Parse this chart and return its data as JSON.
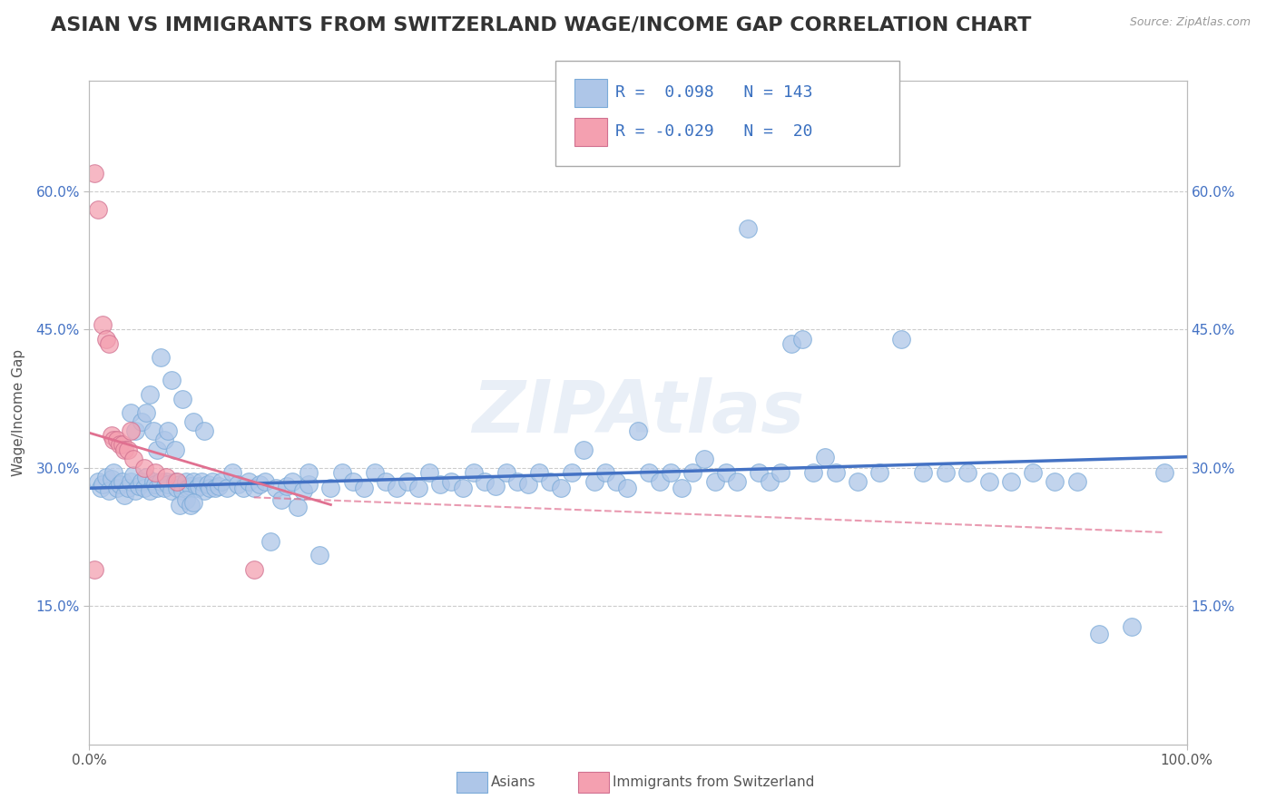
{
  "title": "ASIAN VS IMMIGRANTS FROM SWITZERLAND WAGE/INCOME GAP CORRELATION CHART",
  "source": "Source: ZipAtlas.com",
  "ylabel": "Wage/Income Gap",
  "xlim": [
    0.0,
    1.0
  ],
  "ylim": [
    0.0,
    0.72
  ],
  "yticks": [
    0.15,
    0.3,
    0.45,
    0.6
  ],
  "yticklabels": [
    "15.0%",
    "30.0%",
    "45.0%",
    "60.0%"
  ],
  "blue_dot_color": "#aec6e8",
  "pink_dot_color": "#f4a0b0",
  "blue_line_color": "#4472c4",
  "pink_line_color": "#e07090",
  "grid_color": "#cccccc",
  "background_color": "#ffffff",
  "watermark": "ZIPAtlas",
  "title_fontsize": 16,
  "axis_label_fontsize": 11,
  "tick_fontsize": 11,
  "blue_points_x": [
    0.008,
    0.01,
    0.012,
    0.015,
    0.018,
    0.02,
    0.022,
    0.025,
    0.028,
    0.03,
    0.032,
    0.035,
    0.038,
    0.04,
    0.042,
    0.045,
    0.048,
    0.05,
    0.052,
    0.055,
    0.058,
    0.06,
    0.062,
    0.065,
    0.068,
    0.07,
    0.072,
    0.075,
    0.078,
    0.08,
    0.082,
    0.085,
    0.088,
    0.09,
    0.092,
    0.095,
    0.098,
    0.1,
    0.102,
    0.105,
    0.108,
    0.11,
    0.112,
    0.115,
    0.118,
    0.12,
    0.125,
    0.13,
    0.135,
    0.14,
    0.145,
    0.15,
    0.155,
    0.16,
    0.165,
    0.17,
    0.175,
    0.18,
    0.185,
    0.19,
    0.195,
    0.2,
    0.21,
    0.22,
    0.23,
    0.24,
    0.25,
    0.26,
    0.27,
    0.28,
    0.29,
    0.3,
    0.31,
    0.32,
    0.33,
    0.34,
    0.35,
    0.36,
    0.37,
    0.38,
    0.39,
    0.4,
    0.41,
    0.42,
    0.43,
    0.44,
    0.45,
    0.46,
    0.47,
    0.48,
    0.49,
    0.5,
    0.51,
    0.52,
    0.53,
    0.54,
    0.55,
    0.56,
    0.57,
    0.58,
    0.59,
    0.6,
    0.61,
    0.62,
    0.63,
    0.64,
    0.65,
    0.66,
    0.67,
    0.68,
    0.7,
    0.72,
    0.74,
    0.76,
    0.78,
    0.8,
    0.82,
    0.84,
    0.86,
    0.88,
    0.9,
    0.92,
    0.95,
    0.98,
    0.038,
    0.042,
    0.048,
    0.052,
    0.058,
    0.062,
    0.068,
    0.072,
    0.078,
    0.082,
    0.088,
    0.092,
    0.095,
    0.055,
    0.065,
    0.075,
    0.085,
    0.095,
    0.105,
    0.2
  ],
  "blue_points_y": [
    0.285,
    0.278,
    0.282,
    0.29,
    0.275,
    0.288,
    0.295,
    0.278,
    0.282,
    0.285,
    0.27,
    0.278,
    0.285,
    0.292,
    0.275,
    0.28,
    0.285,
    0.278,
    0.29,
    0.275,
    0.285,
    0.282,
    0.278,
    0.285,
    0.278,
    0.285,
    0.282,
    0.275,
    0.285,
    0.278,
    0.282,
    0.275,
    0.285,
    0.278,
    0.28,
    0.285,
    0.278,
    0.28,
    0.285,
    0.275,
    0.282,
    0.278,
    0.285,
    0.278,
    0.28,
    0.285,
    0.278,
    0.295,
    0.282,
    0.278,
    0.285,
    0.278,
    0.282,
    0.285,
    0.22,
    0.278,
    0.265,
    0.28,
    0.285,
    0.258,
    0.275,
    0.282,
    0.205,
    0.278,
    0.295,
    0.285,
    0.278,
    0.295,
    0.285,
    0.278,
    0.285,
    0.278,
    0.295,
    0.282,
    0.285,
    0.278,
    0.295,
    0.285,
    0.28,
    0.295,
    0.285,
    0.282,
    0.295,
    0.285,
    0.278,
    0.295,
    0.32,
    0.285,
    0.295,
    0.285,
    0.278,
    0.34,
    0.295,
    0.285,
    0.295,
    0.278,
    0.295,
    0.31,
    0.285,
    0.295,
    0.285,
    0.56,
    0.295,
    0.285,
    0.295,
    0.435,
    0.44,
    0.295,
    0.312,
    0.295,
    0.285,
    0.295,
    0.44,
    0.295,
    0.295,
    0.295,
    0.285,
    0.285,
    0.295,
    0.285,
    0.285,
    0.12,
    0.128,
    0.295,
    0.36,
    0.34,
    0.35,
    0.36,
    0.34,
    0.32,
    0.33,
    0.34,
    0.32,
    0.26,
    0.265,
    0.26,
    0.262,
    0.38,
    0.42,
    0.395,
    0.375,
    0.35,
    0.34,
    0.295
  ],
  "pink_points_x": [
    0.005,
    0.008,
    0.012,
    0.015,
    0.018,
    0.02,
    0.022,
    0.025,
    0.028,
    0.03,
    0.032,
    0.035,
    0.038,
    0.04,
    0.05,
    0.06,
    0.07,
    0.08,
    0.15,
    0.005
  ],
  "pink_points_y": [
    0.62,
    0.58,
    0.455,
    0.44,
    0.435,
    0.335,
    0.33,
    0.33,
    0.325,
    0.325,
    0.32,
    0.32,
    0.34,
    0.31,
    0.3,
    0.295,
    0.29,
    0.285,
    0.19,
    0.19
  ],
  "blue_trend_x0": 0.0,
  "blue_trend_x1": 1.0,
  "blue_trend_y0": 0.278,
  "blue_trend_y1": 0.312,
  "pink_trend_x0": 0.0,
  "pink_trend_x1": 0.22,
  "pink_trend_y0": 0.338,
  "pink_trend_y1": 0.26
}
